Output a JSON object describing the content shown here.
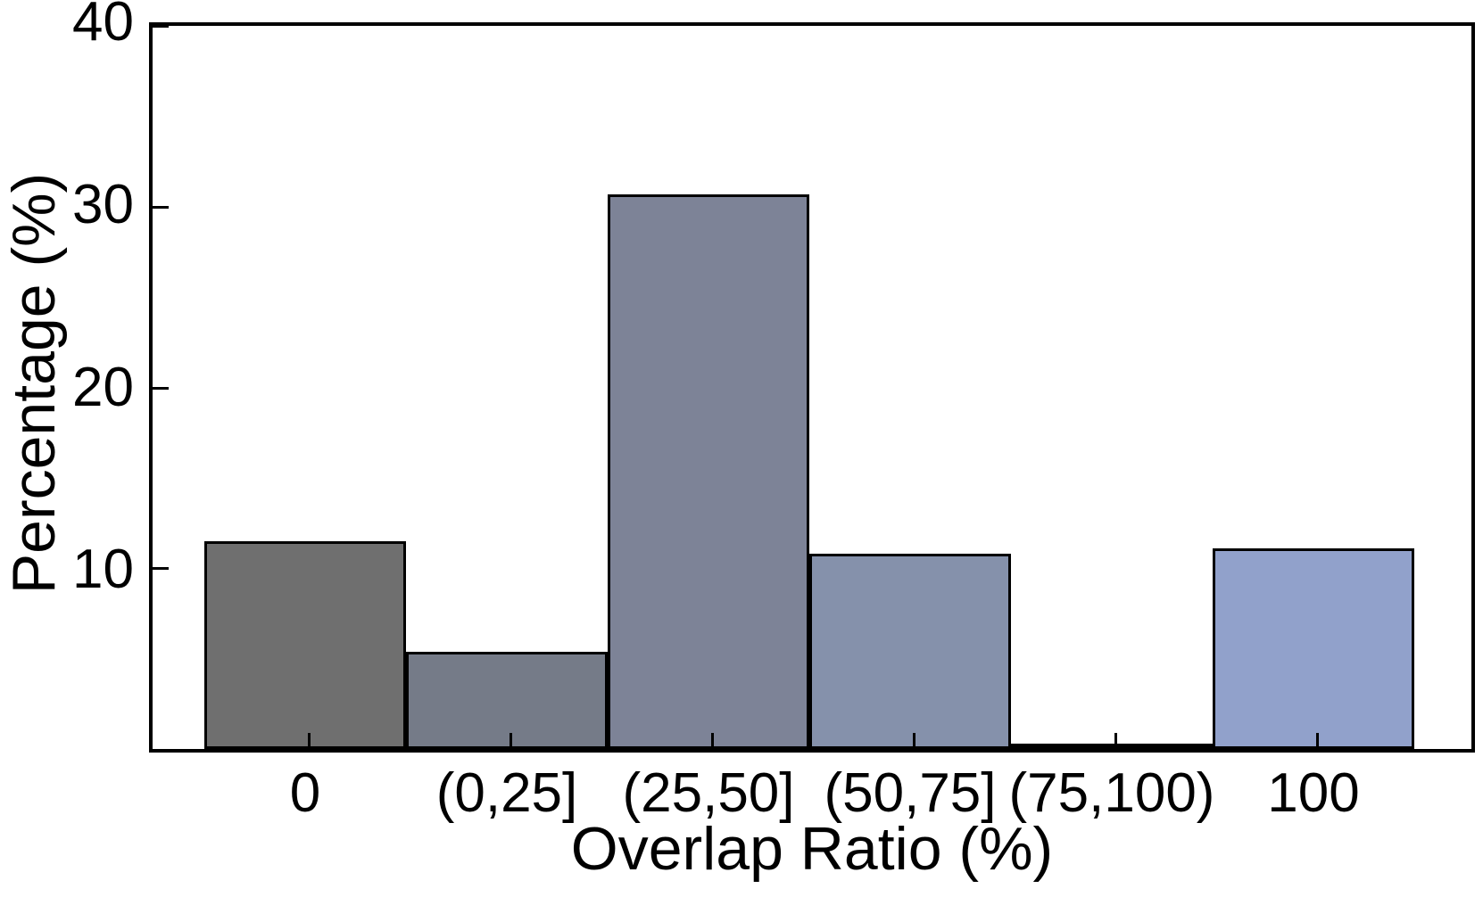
{
  "chart_data": {
    "type": "bar",
    "title": "",
    "xlabel": "Overlap Ratio (%)",
    "ylabel": "Percentage (%)",
    "categories": [
      "0",
      "(0,25]",
      "(25,50]",
      "(50,75]",
      "(75,100)",
      "100"
    ],
    "values": [
      11.5,
      5.4,
      30.7,
      10.8,
      0.2,
      11.1
    ],
    "bar_colors": [
      "#6F6F6F",
      "#757B88",
      "#7D8397",
      "#8591AB",
      "#8B99BB",
      "#91A1CB"
    ],
    "bar_edge_color": "#000000",
    "ylim": [
      0,
      40
    ],
    "yticks": [
      10,
      20,
      30,
      40
    ],
    "xtick_labels": [
      "0",
      "(0,25]",
      "(25,50]",
      "(50,75]",
      "(75,100)",
      "100"
    ],
    "grid": false,
    "legend": null,
    "frame": true,
    "tick_direction": "in"
  }
}
